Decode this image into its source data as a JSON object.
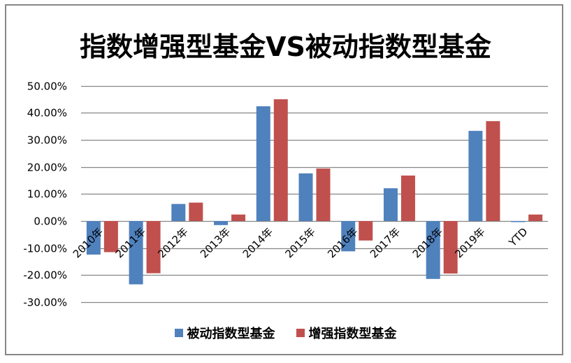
{
  "chart_data": {
    "type": "bar",
    "title": "指数增强型基金VS被动指数型基金",
    "xlabel": "",
    "ylabel": "",
    "categories": [
      "2010年",
      "2011年",
      "2012年",
      "2013年",
      "2014年",
      "2015年",
      "2016年",
      "2017年",
      "2018年",
      "2019年",
      "YTD"
    ],
    "series": [
      {
        "name": "被动指数型基金",
        "color": "#4F81BD",
        "values": [
          -12.4,
          -23.4,
          6.3,
          -1.5,
          42.4,
          17.6,
          -11.2,
          12.1,
          -21.4,
          33.3,
          -0.4
        ]
      },
      {
        "name": "增强指数型基金",
        "color": "#C0504D",
        "values": [
          -11.5,
          -19.3,
          6.8,
          2.4,
          45.0,
          19.4,
          -7.2,
          16.8,
          -19.4,
          36.9,
          2.4
        ]
      }
    ],
    "ylim": [
      -30,
      50
    ],
    "yticks": [
      "50.00%",
      "40.00%",
      "30.00%",
      "20.00%",
      "10.00%",
      "0.00%",
      "-10.00%",
      "-20.00%",
      "-30.00%"
    ],
    "ytick_values": [
      50,
      40,
      30,
      20,
      10,
      0,
      -10,
      -20,
      -30
    ],
    "grid": true,
    "legend_position": "bottom",
    "gridline_color": "#868686"
  },
  "legend": {
    "items": [
      {
        "label": "被动指数型基金",
        "color": "#4F81BD"
      },
      {
        "label": "增强指数型基金",
        "color": "#C0504D"
      }
    ]
  }
}
